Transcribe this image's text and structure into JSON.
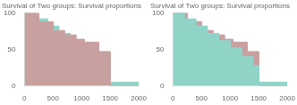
{
  "chart_data": [
    {
      "type": "area",
      "title": "Survival of Two groups: Survival proportions",
      "xlim": [
        0,
        2000
      ],
      "ylim": [
        0,
        100
      ],
      "xticks": [
        0,
        500,
        1000,
        1500,
        2000
      ],
      "yticks": [
        0,
        50,
        100
      ],
      "grid": false,
      "series": [
        {
          "color": "#90D4C8",
          "x": [
            0,
            200,
            200,
            400,
            400,
            600,
            600,
            800,
            800,
            1000,
            1000,
            1200,
            1200,
            1400,
            1400,
            1500,
            1500,
            2000
          ],
          "values": [
            100,
            100,
            92,
            92,
            82,
            82,
            72,
            72,
            62,
            62,
            52,
            52,
            40,
            40,
            28,
            28,
            5,
            5
          ]
        },
        {
          "color": "#c8a0a0",
          "x": [
            0,
            250,
            250,
            500,
            500,
            700,
            700,
            900,
            900,
            1050,
            1050,
            1300,
            1300,
            1500,
            1500,
            2000
          ],
          "values": [
            100,
            100,
            88,
            88,
            76,
            76,
            70,
            70,
            64,
            64,
            60,
            60,
            47,
            47,
            0,
            0
          ]
        }
      ]
    },
    {
      "type": "area",
      "title": "Survival of Two groups: Survival proportions",
      "xlim": [
        0,
        2000
      ],
      "ylim": [
        0,
        100
      ],
      "xticks": [
        0,
        500,
        1000,
        1500,
        2000
      ],
      "yticks": [
        0,
        50,
        100
      ],
      "grid": false,
      "series": [
        {
          "color": "#c8a0a0",
          "x": [
            0,
            250,
            250,
            500,
            500,
            700,
            700,
            900,
            900,
            1050,
            1050,
            1300,
            1300,
            1500,
            1500,
            2000
          ],
          "values": [
            100,
            100,
            88,
            88,
            76,
            76,
            70,
            70,
            64,
            64,
            60,
            60,
            47,
            47,
            0,
            0
          ]
        },
        {
          "color": "#90D4C8",
          "x": [
            0,
            200,
            200,
            400,
            400,
            600,
            600,
            800,
            800,
            1000,
            1000,
            1200,
            1200,
            1400,
            1400,
            1500,
            1500,
            2000
          ],
          "values": [
            100,
            100,
            92,
            92,
            82,
            82,
            72,
            72,
            62,
            62,
            52,
            52,
            40,
            40,
            28,
            28,
            5,
            5
          ]
        }
      ]
    }
  ]
}
